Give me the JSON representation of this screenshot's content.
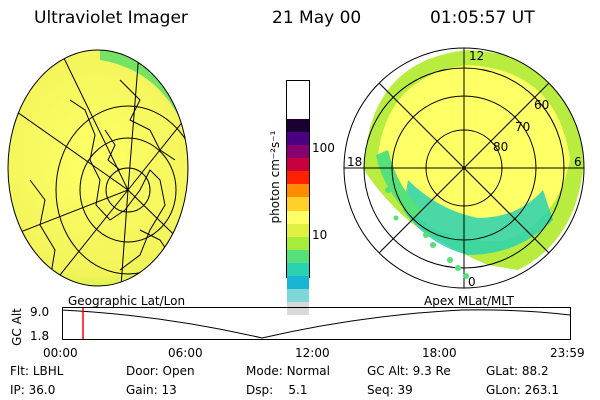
{
  "header": {
    "title": "Ultraviolet Imager",
    "date": "21 May 00",
    "time": "01:05:57 UT"
  },
  "colorbar": {
    "label": "photon cm⁻²s⁻¹",
    "ticks": [
      "100",
      "10"
    ],
    "colors": [
      "#d8d8d8",
      "#7fd8d8",
      "#19b5d6",
      "#2ad2b2",
      "#55e07a",
      "#a6ec3a",
      "#e0f040",
      "#ffff66",
      "#ffd028",
      "#ff8c00",
      "#ff2000",
      "#c8003c",
      "#880070",
      "#4a0080",
      "#1a0030"
    ]
  },
  "polar_plot": {
    "mlt_labels": {
      "top": "12",
      "left": "18",
      "right": "6",
      "bottom": "0"
    },
    "lat_labels": [
      "60",
      "70",
      "80"
    ]
  },
  "timeline": {
    "y_label": "GC Alt",
    "y_ticks": [
      "9.0",
      "1.8"
    ],
    "left_title": "Geographic Lat/Lon",
    "right_title": "Apex MLat/MLT",
    "x_ticks": [
      "00:00",
      "06:00",
      "12:00",
      "18:00",
      "23:59"
    ],
    "marker_color": "#ff0000"
  },
  "status": {
    "row1": [
      {
        "key": "Flt:",
        "value": "LBHL"
      },
      {
        "key": "Door:",
        "value": "Open"
      },
      {
        "key": "Mode:",
        "value": "Normal"
      },
      {
        "key": "GC Alt:",
        "value": "9.3 Re"
      },
      {
        "key": "GLat:",
        "value": "88.2"
      }
    ],
    "row2": [
      {
        "key": "IP:",
        "value": "36.0"
      },
      {
        "key": "Gain:",
        "value": "13"
      },
      {
        "key": "Dsp:",
        "value": "5.1"
      },
      {
        "key": "Seq:",
        "value": "39"
      },
      {
        "key": "GLon:",
        "value": "263.1"
      }
    ]
  }
}
